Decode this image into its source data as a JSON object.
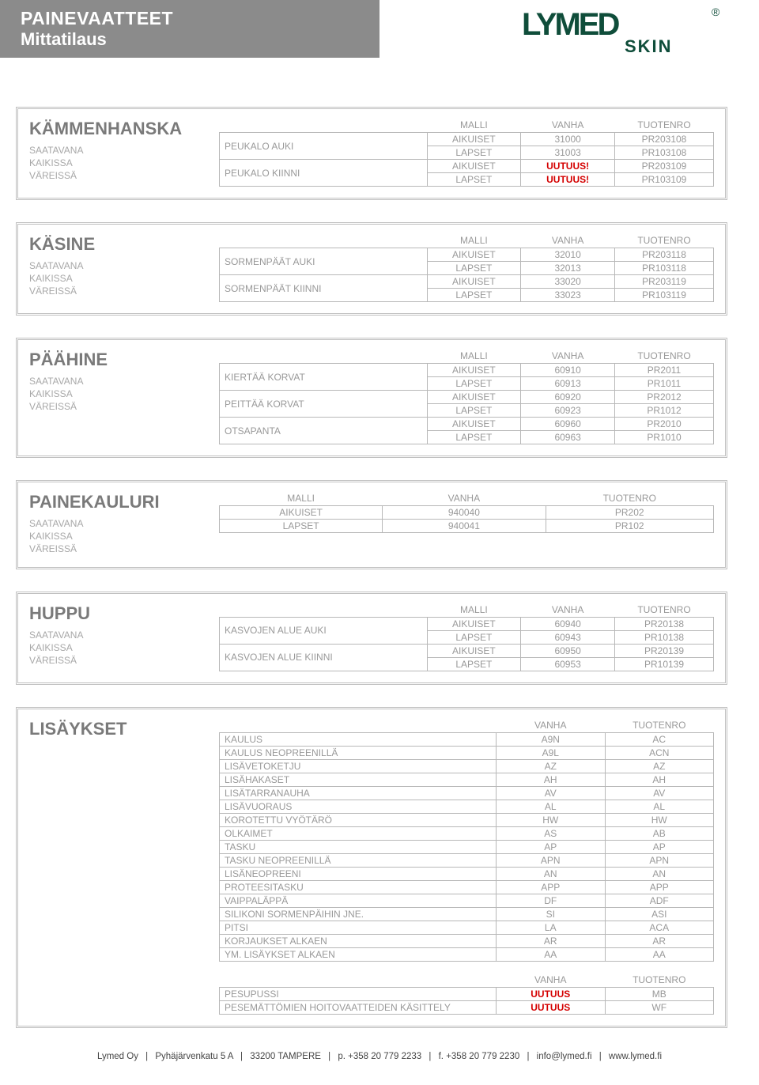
{
  "header": {
    "title1": "PAINEVAATTEET",
    "title2": "Mittatilaus"
  },
  "logo": {
    "brand": "LYMED",
    "sub": "SKIN",
    "accent": "#0f4d3a"
  },
  "availability": {
    "line1": "SAATAVANA",
    "line2": "KAIKISSA",
    "line3": "VÄREISSÄ"
  },
  "cols": {
    "malli": "MALLI",
    "vanha": "VANHA",
    "tuotenro": "TUOTENRO"
  },
  "sections": [
    {
      "title": "KÄMMENHANSKA",
      "groups": [
        {
          "label": "PEUKALO AUKI",
          "rows": [
            {
              "malli": "AIKUISET",
              "vanha": "31000",
              "tuotenro": "PR203108"
            },
            {
              "malli": "LAPSET",
              "vanha": "31003",
              "tuotenro": "PR103108"
            }
          ]
        },
        {
          "label": "PEUKALO KIINNI",
          "rows": [
            {
              "malli": "AIKUISET",
              "vanha": "UUTUUS!",
              "vanha_red": true,
              "tuotenro": "PR203109"
            },
            {
              "malli": "LAPSET",
              "vanha": "UUTUUS!",
              "vanha_red": true,
              "tuotenro": "PR103109"
            }
          ]
        }
      ]
    },
    {
      "title": "KÄSINE",
      "groups": [
        {
          "label": "SORMENPÄÄT AUKI",
          "rows": [
            {
              "malli": "AIKUISET",
              "vanha": "32010",
              "tuotenro": "PR203118"
            },
            {
              "malli": "LAPSET",
              "vanha": "32013",
              "tuotenro": "PR103118"
            }
          ]
        },
        {
          "label": "SORMENPÄÄT KIINNI",
          "rows": [
            {
              "malli": "AIKUISET",
              "vanha": "33020",
              "tuotenro": "PR203119"
            },
            {
              "malli": "LAPSET",
              "vanha": "33023",
              "tuotenro": "PR103119"
            }
          ]
        }
      ]
    },
    {
      "title": "PÄÄHINE",
      "groups": [
        {
          "label": "KIERTÄÄ KORVAT",
          "rows": [
            {
              "malli": "AIKUISET",
              "vanha": "60910",
              "tuotenro": "PR2011"
            },
            {
              "malli": "LAPSET",
              "vanha": "60913",
              "tuotenro": "PR1011"
            }
          ]
        },
        {
          "label": "PEITTÄÄ KORVAT",
          "rows": [
            {
              "malli": "AIKUISET",
              "vanha": "60920",
              "tuotenro": "PR2012"
            },
            {
              "malli": "LAPSET",
              "vanha": "60923",
              "tuotenro": "PR1012"
            }
          ]
        },
        {
          "label": "OTSAPANTA",
          "rows": [
            {
              "malli": "AIKUISET",
              "vanha": "60960",
              "tuotenro": "PR2010"
            },
            {
              "malli": "LAPSET",
              "vanha": "60963",
              "tuotenro": "PR1010"
            }
          ]
        }
      ]
    },
    {
      "title": "PAINEKAULURI",
      "groups": [
        {
          "label": "",
          "rows": [
            {
              "malli": "AIKUISET",
              "vanha": "940040",
              "tuotenro": "PR202"
            },
            {
              "malli": "LAPSET",
              "vanha": "940041",
              "tuotenro": "PR102"
            }
          ]
        }
      ]
    },
    {
      "title": "HUPPU",
      "groups": [
        {
          "label": "KASVOJEN ALUE AUKI",
          "rows": [
            {
              "malli": "AIKUISET",
              "vanha": "60940",
              "tuotenro": "PR20138"
            },
            {
              "malli": "LAPSET",
              "vanha": "60943",
              "tuotenro": "PR10138"
            }
          ]
        },
        {
          "label": "KASVOJEN ALUE KIINNI",
          "rows": [
            {
              "malli": "AIKUISET",
              "vanha": "60950",
              "tuotenro": "PR20139"
            },
            {
              "malli": "LAPSET",
              "vanha": "60953",
              "tuotenro": "PR10139"
            }
          ]
        }
      ]
    }
  ],
  "lisaykset": {
    "title": "LISÄYKSET",
    "rows1": [
      {
        "desc": "KAULUS",
        "vanha": "A9N",
        "tuotenro": "AC"
      },
      {
        "desc": "KAULUS NEOPREENILLÄ",
        "vanha": "A9L",
        "tuotenro": "ACN"
      },
      {
        "desc": "LISÄVETOKETJU",
        "vanha": "AZ",
        "tuotenro": "AZ"
      },
      {
        "desc": "LISÄHAKASET",
        "vanha": "AH",
        "tuotenro": "AH"
      },
      {
        "desc": "LISÄTARRANAUHA",
        "vanha": "AV",
        "tuotenro": "AV"
      },
      {
        "desc": "LISÄVUORAUS",
        "vanha": "AL",
        "tuotenro": "AL"
      },
      {
        "desc": "KOROTETTU VYÖTÄRÖ",
        "vanha": "HW",
        "tuotenro": "HW"
      },
      {
        "desc": "OLKAIMET",
        "vanha": "AS",
        "tuotenro": "AB"
      },
      {
        "desc": "TASKU",
        "vanha": "AP",
        "tuotenro": "AP"
      },
      {
        "desc": "TASKU NEOPREENILLÄ",
        "vanha": "APN",
        "tuotenro": "APN"
      },
      {
        "desc": "LISÄNEOPREENI",
        "vanha": "AN",
        "tuotenro": "AN"
      },
      {
        "desc": "PROTEESITASKU",
        "vanha": "APP",
        "tuotenro": "APP"
      },
      {
        "desc": "VAIPPALÄPPÄ",
        "vanha": "DF",
        "tuotenro": "ADF"
      },
      {
        "desc": "SILIKONI SORMENPÄIHIN JNE.",
        "vanha": "SI",
        "tuotenro": "ASI"
      },
      {
        "desc": "PITSI",
        "vanha": "LA",
        "tuotenro": "ACA"
      },
      {
        "desc": "KORJAUKSET ALKAEN",
        "vanha": "AR",
        "tuotenro": "AR"
      },
      {
        "desc": "YM. LISÄYKSET ALKAEN",
        "vanha": "AA",
        "tuotenro": "AA"
      }
    ],
    "rows2": [
      {
        "desc": "PESUPUSSI",
        "vanha": "UUTUUS",
        "vanha_red": true,
        "tuotenro": "MB"
      },
      {
        "desc": "PESEMÄTTÖMIEN HOITOVAATTEIDEN KÄSITTELY",
        "vanha": "UUTUUS",
        "vanha_red": true,
        "tuotenro": "WF"
      }
    ]
  },
  "footer": {
    "company": "Lymed Oy",
    "addr": "Pyhäjärvenkatu 5 A",
    "city": "33200 TAMPERE",
    "phone": "p. +358 20 779 2233",
    "fax": "f. +358 20 779 2230",
    "email": "info@lymed.fi",
    "web": "www.lymed.fi"
  }
}
